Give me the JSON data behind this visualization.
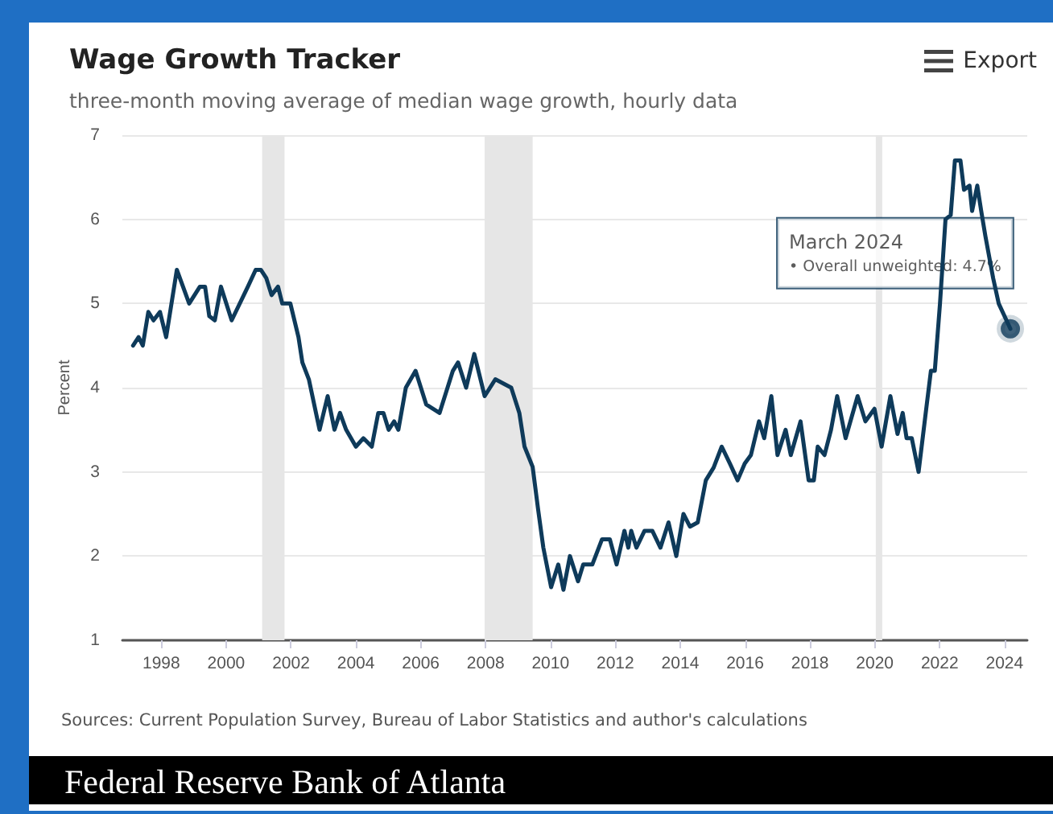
{
  "chart_data": {
    "type": "line",
    "title": "Wage Growth Tracker",
    "subtitle": "three-month moving average of median wage growth, hourly data",
    "ylabel": "Percent",
    "xlim": [
      1996.8,
      2024.7
    ],
    "xticks": [
      1998,
      2000,
      2002,
      2004,
      2006,
      2008,
      2010,
      2012,
      2014,
      2016,
      2018,
      2020,
      2022,
      2024
    ],
    "ylim": [
      1,
      7
    ],
    "yticks": [
      1,
      2,
      3,
      4,
      5,
      6,
      7
    ],
    "grid": "y",
    "marker": "none",
    "line_style": "solid",
    "series": [
      {
        "color": "#0e3a5a",
        "x": [
          1997.13,
          1997.3,
          1997.43,
          1997.6,
          1997.76,
          1997.96,
          1998.15,
          1998.48,
          1998.86,
          1999.19,
          1999.35,
          1999.48,
          1999.65,
          1999.84,
          2000.17,
          2000.67,
          2000.91,
          2001.07,
          2001.24,
          2001.4,
          2001.6,
          2001.73,
          2001.98,
          2002.23,
          2002.35,
          2002.55,
          2002.88,
          2003.13,
          2003.34,
          2003.51,
          2003.7,
          2004.0,
          2004.23,
          2004.49,
          2004.69,
          2004.85,
          2005.01,
          2005.18,
          2005.31,
          2005.54,
          2005.84,
          2006.17,
          2006.58,
          2006.99,
          2007.15,
          2007.4,
          2007.65,
          2007.97,
          2008.3,
          2008.79,
          2009.04,
          2009.2,
          2009.45,
          2009.62,
          2009.78,
          2010.02,
          2010.24,
          2010.4,
          2010.6,
          2010.85,
          2011.01,
          2011.29,
          2011.59,
          2011.83,
          2012.04,
          2012.28,
          2012.4,
          2012.49,
          2012.65,
          2012.9,
          2013.14,
          2013.39,
          2013.64,
          2013.88,
          2014.1,
          2014.3,
          2014.54,
          2014.79,
          2015.03,
          2015.28,
          2015.53,
          2015.77,
          2015.99,
          2016.18,
          2016.43,
          2016.59,
          2016.81,
          2017.0,
          2017.25,
          2017.41,
          2017.71,
          2017.96,
          2018.12,
          2018.24,
          2018.45,
          2018.65,
          2018.84,
          2019.1,
          2019.47,
          2019.71,
          2019.99,
          2020.21,
          2020.48,
          2020.7,
          2020.86,
          2020.98,
          2021.14,
          2021.35,
          2021.57,
          2021.73,
          2021.85,
          2022.01,
          2022.18,
          2022.34,
          2022.47,
          2022.64,
          2022.75,
          2022.92,
          2023.0,
          2023.16,
          2023.28,
          2023.41,
          2023.65,
          2023.82,
          2024.18
        ],
        "values": [
          4.5,
          4.6,
          4.5,
          4.9,
          4.8,
          4.9,
          4.6,
          5.4,
          5.0,
          5.2,
          5.2,
          4.85,
          4.8,
          5.2,
          4.8,
          5.2,
          5.4,
          5.4,
          5.3,
          5.1,
          5.2,
          5.0,
          5.0,
          4.6,
          4.3,
          4.1,
          3.5,
          3.9,
          3.5,
          3.7,
          3.5,
          3.3,
          3.4,
          3.3,
          3.7,
          3.7,
          3.5,
          3.6,
          3.5,
          4.0,
          4.2,
          3.8,
          3.7,
          4.2,
          4.3,
          4.0,
          4.4,
          3.9,
          4.1,
          4.0,
          3.7,
          3.3,
          3.06,
          2.55,
          2.1,
          1.63,
          1.9,
          1.6,
          2.0,
          1.7,
          1.9,
          1.9,
          2.2,
          2.2,
          1.9,
          2.3,
          2.1,
          2.3,
          2.1,
          2.3,
          2.3,
          2.1,
          2.4,
          2.0,
          2.5,
          2.35,
          2.4,
          2.9,
          3.05,
          3.3,
          3.1,
          2.9,
          3.1,
          3.2,
          3.6,
          3.4,
          3.9,
          3.2,
          3.5,
          3.2,
          3.6,
          2.9,
          2.9,
          3.3,
          3.2,
          3.5,
          3.9,
          3.4,
          3.9,
          3.6,
          3.75,
          3.3,
          3.9,
          3.45,
          3.7,
          3.4,
          3.4,
          3.0,
          3.7,
          4.2,
          4.2,
          5.0,
          6.0,
          6.05,
          6.7,
          6.7,
          6.35,
          6.4,
          6.1,
          6.4,
          6.1,
          5.8,
          5.3,
          5.0,
          4.7
        ]
      }
    ],
    "bands": [
      {
        "axis": "x",
        "from": 2001.11,
        "to": 2001.8,
        "color": "#e6e6e6"
      },
      {
        "axis": "x",
        "from": 2007.97,
        "to": 2009.45,
        "color": "#e6e6e6"
      },
      {
        "axis": "x",
        "from": 2020.03,
        "to": 2020.23,
        "color": "#e6e6e6"
      }
    ],
    "annotations": [
      {
        "text": "March 2024\n• Overall unweighted: 4.7%",
        "x": 2024.18,
        "y": 4.7
      },
      "Sources: Current Population Survey, Bureau of Labor Statistics and author's calculations",
      "Export",
      "Federal Reserve Bank of Atlanta"
    ]
  }
}
